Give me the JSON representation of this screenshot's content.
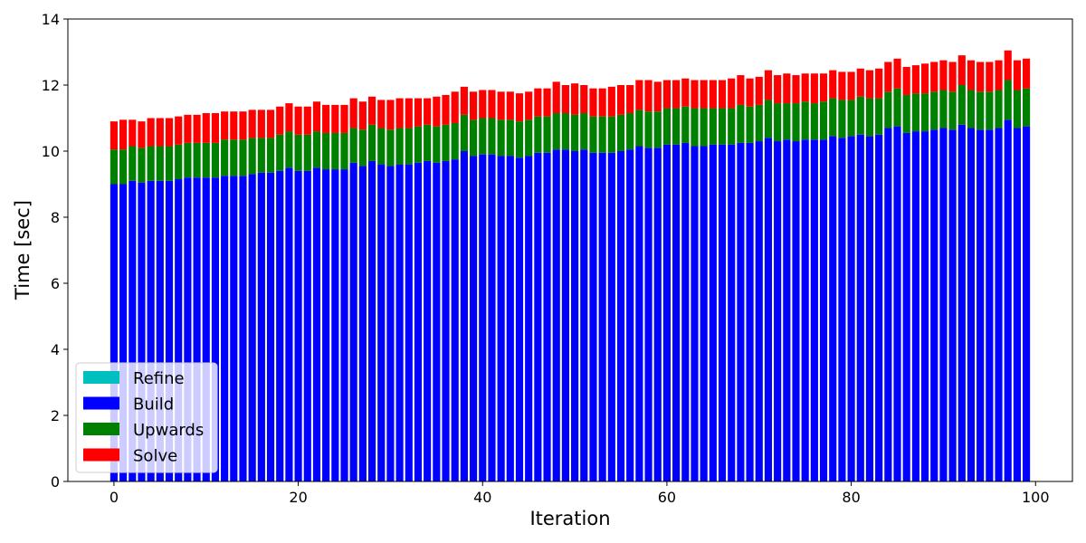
{
  "chart_data": {
    "type": "bar",
    "stacked": true,
    "xlabel": "Iteration",
    "ylabel": "Time [sec]",
    "xlim": [
      -5,
      104
    ],
    "ylim": [
      0,
      14
    ],
    "xticks": [
      0,
      20,
      40,
      60,
      80,
      100
    ],
    "yticks": [
      0,
      2,
      4,
      6,
      8,
      10,
      12,
      14
    ],
    "legend": {
      "location": "lower-left",
      "entries": [
        "Refine",
        "Build",
        "Upwards",
        "Solve"
      ]
    },
    "colors": {
      "Refine": "#00bfbf",
      "Build": "#0000ff",
      "Upwards": "#008000",
      "Solve": "#ff0000"
    },
    "x": [
      0,
      1,
      2,
      3,
      4,
      5,
      6,
      7,
      8,
      9,
      10,
      11,
      12,
      13,
      14,
      15,
      16,
      17,
      18,
      19,
      20,
      21,
      22,
      23,
      24,
      25,
      26,
      27,
      28,
      29,
      30,
      31,
      32,
      33,
      34,
      35,
      36,
      37,
      38,
      39,
      40,
      41,
      42,
      43,
      44,
      45,
      46,
      47,
      48,
      49,
      50,
      51,
      52,
      53,
      54,
      55,
      56,
      57,
      58,
      59,
      60,
      61,
      62,
      63,
      64,
      65,
      66,
      67,
      68,
      69,
      70,
      71,
      72,
      73,
      74,
      75,
      76,
      77,
      78,
      79,
      80,
      81,
      82,
      83,
      84,
      85,
      86,
      87,
      88,
      89,
      90,
      91,
      92,
      93,
      94,
      95,
      96,
      97,
      98,
      99
    ],
    "series": [
      {
        "name": "Refine",
        "values": [
          0,
          0,
          0,
          0,
          0,
          0,
          0,
          0,
          0,
          0,
          0,
          0,
          0,
          0,
          0,
          0,
          0,
          0,
          0,
          0,
          0,
          0,
          0,
          0,
          0,
          0,
          0,
          0,
          0,
          0,
          0,
          0,
          0,
          0,
          0,
          0,
          0,
          0,
          0,
          0,
          0,
          0,
          0,
          0,
          0,
          0,
          0,
          0,
          0,
          0,
          0,
          0,
          0,
          0,
          0,
          0,
          0,
          0,
          0,
          0,
          0,
          0,
          0,
          0,
          0,
          0,
          0,
          0,
          0,
          0,
          0,
          0,
          0,
          0,
          0,
          0,
          0,
          0,
          0,
          0,
          0,
          0,
          0,
          0,
          0,
          0,
          0,
          0,
          0,
          0,
          0,
          0,
          0,
          0,
          0,
          0,
          0,
          0,
          0,
          0
        ]
      },
      {
        "name": "Build",
        "values": [
          9.0,
          9.0,
          9.1,
          9.05,
          9.1,
          9.1,
          9.1,
          9.15,
          9.2,
          9.2,
          9.2,
          9.2,
          9.25,
          9.25,
          9.25,
          9.3,
          9.35,
          9.35,
          9.4,
          9.5,
          9.4,
          9.4,
          9.5,
          9.45,
          9.45,
          9.45,
          9.65,
          9.55,
          9.7,
          9.6,
          9.55,
          9.6,
          9.6,
          9.65,
          9.7,
          9.65,
          9.7,
          9.75,
          10.0,
          9.85,
          9.9,
          9.9,
          9.85,
          9.85,
          9.8,
          9.85,
          9.95,
          9.95,
          10.05,
          10.05,
          10.0,
          10.05,
          9.95,
          9.95,
          9.95,
          10.0,
          10.05,
          10.15,
          10.1,
          10.1,
          10.2,
          10.2,
          10.25,
          10.15,
          10.15,
          10.2,
          10.2,
          10.2,
          10.25,
          10.25,
          10.3,
          10.4,
          10.3,
          10.35,
          10.3,
          10.35,
          10.35,
          10.35,
          10.45,
          10.4,
          10.45,
          10.5,
          10.45,
          10.5,
          10.7,
          10.75,
          10.55,
          10.6,
          10.6,
          10.65,
          10.7,
          10.65,
          10.8,
          10.7,
          10.65,
          10.65,
          10.7,
          10.95,
          10.7,
          10.75
        ]
      },
      {
        "name": "Upwards",
        "values": [
          1.05,
          1.05,
          1.05,
          1.05,
          1.05,
          1.05,
          1.05,
          1.05,
          1.05,
          1.05,
          1.05,
          1.05,
          1.1,
          1.1,
          1.1,
          1.1,
          1.05,
          1.05,
          1.1,
          1.1,
          1.1,
          1.1,
          1.1,
          1.1,
          1.1,
          1.1,
          1.05,
          1.1,
          1.1,
          1.1,
          1.1,
          1.1,
          1.1,
          1.1,
          1.1,
          1.1,
          1.1,
          1.1,
          1.1,
          1.1,
          1.1,
          1.1,
          1.1,
          1.1,
          1.1,
          1.1,
          1.1,
          1.1,
          1.1,
          1.1,
          1.1,
          1.1,
          1.1,
          1.1,
          1.1,
          1.1,
          1.1,
          1.1,
          1.1,
          1.1,
          1.1,
          1.1,
          1.1,
          1.15,
          1.15,
          1.1,
          1.1,
          1.1,
          1.15,
          1.1,
          1.1,
          1.15,
          1.15,
          1.1,
          1.15,
          1.15,
          1.1,
          1.15,
          1.15,
          1.15,
          1.1,
          1.15,
          1.15,
          1.1,
          1.1,
          1.15,
          1.15,
          1.15,
          1.15,
          1.15,
          1.15,
          1.15,
          1.2,
          1.15,
          1.15,
          1.15,
          1.15,
          1.2,
          1.15,
          1.15
        ]
      },
      {
        "name": "Solve",
        "values": [
          0.85,
          0.9,
          0.8,
          0.8,
          0.85,
          0.85,
          0.85,
          0.85,
          0.85,
          0.85,
          0.9,
          0.9,
          0.85,
          0.85,
          0.85,
          0.85,
          0.85,
          0.85,
          0.85,
          0.85,
          0.85,
          0.85,
          0.9,
          0.85,
          0.85,
          0.85,
          0.9,
          0.85,
          0.85,
          0.85,
          0.9,
          0.9,
          0.9,
          0.85,
          0.8,
          0.9,
          0.9,
          0.95,
          0.85,
          0.85,
          0.85,
          0.85,
          0.85,
          0.85,
          0.85,
          0.85,
          0.85,
          0.85,
          0.95,
          0.85,
          0.95,
          0.85,
          0.85,
          0.85,
          0.9,
          0.9,
          0.85,
          0.9,
          0.95,
          0.9,
          0.85,
          0.85,
          0.85,
          0.85,
          0.85,
          0.85,
          0.85,
          0.9,
          0.9,
          0.85,
          0.85,
          0.9,
          0.85,
          0.9,
          0.85,
          0.85,
          0.9,
          0.85,
          0.85,
          0.85,
          0.85,
          0.85,
          0.85,
          0.9,
          0.9,
          0.9,
          0.85,
          0.85,
          0.9,
          0.9,
          0.9,
          0.9,
          0.9,
          0.9,
          0.9,
          0.9,
          0.9,
          0.9,
          0.9,
          0.9
        ]
      }
    ]
  }
}
